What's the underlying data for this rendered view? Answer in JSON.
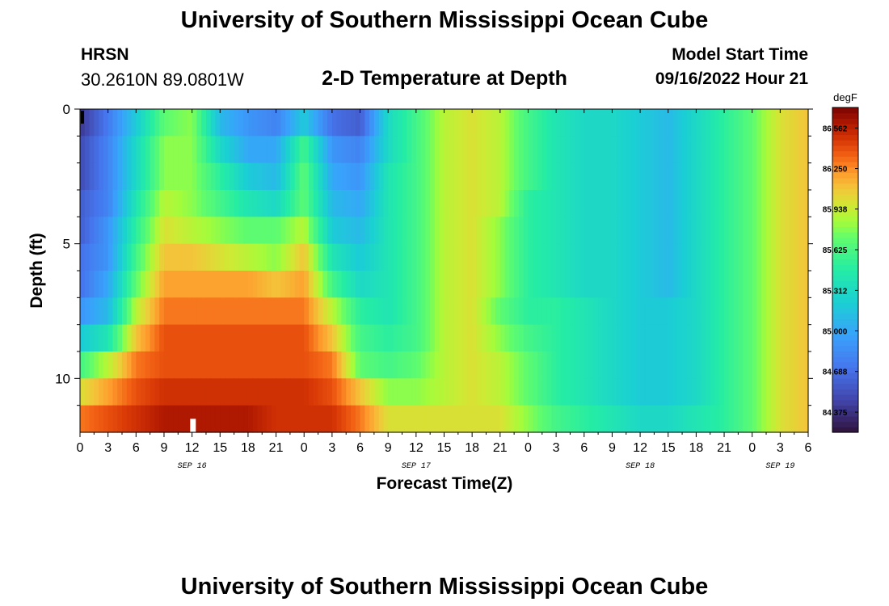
{
  "header": {
    "title": "University of Southern Mississippi Ocean Cube",
    "station": "HRSN",
    "coordinates": "30.2610N  89.0801W",
    "subtitle": "2-D Temperature at Depth",
    "model_start_label": "Model Start Time",
    "model_start_value": "09/16/2022 Hour 21"
  },
  "footer": {
    "title": "University of Southern Mississippi Ocean Cube"
  },
  "chart_data": {
    "type": "heatmap",
    "title": "2-D Temperature at Depth",
    "xlabel": "Forecast Time(Z)",
    "ylabel": "Depth (ft)",
    "x_unit": "hours since SEP 16 00Z",
    "xlim": [
      0,
      78
    ],
    "ylim": [
      12,
      0
    ],
    "x_ticks": [
      0,
      3,
      6,
      9,
      12,
      15,
      18,
      21,
      24,
      27,
      30,
      33,
      36,
      39,
      42,
      45,
      48,
      51,
      54,
      57,
      60,
      63,
      66,
      69,
      72,
      75,
      78
    ],
    "x_tick_labels": [
      "0",
      "3",
      "6",
      "9",
      "12",
      "15",
      "18",
      "21",
      "0",
      "3",
      "6",
      "9",
      "12",
      "15",
      "18",
      "21",
      "0",
      "3",
      "6",
      "9",
      "12",
      "15",
      "18",
      "21",
      "0",
      "3",
      "6"
    ],
    "date_labels": [
      {
        "hour": 12,
        "label": "SEP 16"
      },
      {
        "hour": 36,
        "label": "SEP 17"
      },
      {
        "hour": 60,
        "label": "SEP 18"
      },
      {
        "hour": 75,
        "label": "SEP 19"
      }
    ],
    "y_ticks": [
      0,
      5,
      10
    ],
    "y_tick_labels": [
      "0",
      "5",
      "10"
    ],
    "colorbar": {
      "unit": "degF",
      "min": 84.22,
      "max": 86.72,
      "tick_values": [
        86.562,
        86.25,
        85.938,
        85.625,
        85.312,
        85.0,
        84.688,
        84.375
      ],
      "tick_labels": [
        "86.562",
        "86.250",
        "85.938",
        "85.625",
        "85.312",
        "85.000",
        "84.688",
        "84.375"
      ]
    },
    "depth_levels_ft": [
      0.5,
      1.5,
      2.5,
      3.5,
      4.5,
      5.5,
      6.5,
      7.5,
      8.5,
      9.5,
      10.5,
      11.5
    ],
    "time_hours": [
      0,
      3,
      6,
      9,
      12,
      15,
      18,
      21,
      24,
      27,
      30,
      33,
      36,
      39,
      42,
      45,
      48,
      51,
      54,
      57,
      60,
      63,
      66,
      69,
      72,
      75,
      78
    ],
    "temperature_degF": [
      [
        84.4,
        84.75,
        85.2,
        85.7,
        85.8,
        85.1,
        84.9,
        84.8,
        85.2,
        84.7,
        84.6,
        85.3,
        85.6,
        85.9,
        86.0,
        85.9,
        85.6,
        85.4,
        85.3,
        85.3,
        85.2,
        85.1,
        85.3,
        85.5,
        85.7,
        86.0,
        86.1
      ],
      [
        84.5,
        84.8,
        85.3,
        85.8,
        85.8,
        85.3,
        85.0,
        85.0,
        85.6,
        84.9,
        84.8,
        85.3,
        85.6,
        85.9,
        86.0,
        85.9,
        85.6,
        85.4,
        85.3,
        85.3,
        85.2,
        85.1,
        85.3,
        85.5,
        85.7,
        86.0,
        86.1
      ],
      [
        84.5,
        84.8,
        85.3,
        85.8,
        85.8,
        85.5,
        85.2,
        85.1,
        85.7,
        85.0,
        84.9,
        85.4,
        85.6,
        85.9,
        86.0,
        85.9,
        85.6,
        85.4,
        85.3,
        85.3,
        85.2,
        85.1,
        85.3,
        85.5,
        85.7,
        86.0,
        86.1
      ],
      [
        84.6,
        84.8,
        85.4,
        85.9,
        85.8,
        85.6,
        85.4,
        85.3,
        85.7,
        85.1,
        85.0,
        85.4,
        85.6,
        85.9,
        86.0,
        85.9,
        85.5,
        85.4,
        85.3,
        85.3,
        85.2,
        85.1,
        85.3,
        85.5,
        85.7,
        86.0,
        86.1
      ],
      [
        84.6,
        84.9,
        85.5,
        86.0,
        85.9,
        85.8,
        85.7,
        85.7,
        85.9,
        85.2,
        85.1,
        85.4,
        85.6,
        85.9,
        86.0,
        85.8,
        85.5,
        85.4,
        85.3,
        85.3,
        85.2,
        85.1,
        85.3,
        85.5,
        85.7,
        86.0,
        86.1
      ],
      [
        84.7,
        84.9,
        85.6,
        86.1,
        86.1,
        86.0,
        85.9,
        85.8,
        86.1,
        85.4,
        85.2,
        85.4,
        85.6,
        85.9,
        86.0,
        85.8,
        85.5,
        85.4,
        85.3,
        85.3,
        85.2,
        85.1,
        85.3,
        85.5,
        85.7,
        86.0,
        86.1
      ],
      [
        84.7,
        85.0,
        85.7,
        86.2,
        86.2,
        86.2,
        86.2,
        86.1,
        86.2,
        85.6,
        85.3,
        85.4,
        85.6,
        85.9,
        86.0,
        85.8,
        85.5,
        85.4,
        85.3,
        85.3,
        85.2,
        85.1,
        85.3,
        85.5,
        85.7,
        86.0,
        86.1
      ],
      [
        84.9,
        85.1,
        85.9,
        86.3,
        86.3,
        86.3,
        86.3,
        86.3,
        86.3,
        85.9,
        85.5,
        85.4,
        85.6,
        85.9,
        86.0,
        85.7,
        85.5,
        85.5,
        85.4,
        85.3,
        85.2,
        85.2,
        85.3,
        85.5,
        85.7,
        86.0,
        86.1
      ],
      [
        85.2,
        85.4,
        86.1,
        86.4,
        86.4,
        86.4,
        86.4,
        86.4,
        86.4,
        86.1,
        85.6,
        85.5,
        85.6,
        85.9,
        86.0,
        85.8,
        85.6,
        85.5,
        85.4,
        85.3,
        85.2,
        85.2,
        85.3,
        85.5,
        85.7,
        86.0,
        86.1
      ],
      [
        85.6,
        85.9,
        86.3,
        86.4,
        86.4,
        86.4,
        86.4,
        86.4,
        86.4,
        86.3,
        85.7,
        85.6,
        85.7,
        85.9,
        86.0,
        85.9,
        85.7,
        85.5,
        85.4,
        85.3,
        85.2,
        85.2,
        85.3,
        85.5,
        85.7,
        86.0,
        86.1
      ],
      [
        86.0,
        86.2,
        86.4,
        86.5,
        86.5,
        86.5,
        86.5,
        86.5,
        86.5,
        86.4,
        86.1,
        85.8,
        85.8,
        85.9,
        86.0,
        85.9,
        85.7,
        85.5,
        85.4,
        85.3,
        85.2,
        85.2,
        85.3,
        85.5,
        85.7,
        86.0,
        86.1
      ],
      [
        86.3,
        86.4,
        86.5,
        86.6,
        86.6,
        86.6,
        86.6,
        86.5,
        86.5,
        86.5,
        86.3,
        86.0,
        86.0,
        86.0,
        86.0,
        86.0,
        85.8,
        85.6,
        85.5,
        85.4,
        85.3,
        85.3,
        85.4,
        85.5,
        85.7,
        86.0,
        86.1
      ]
    ]
  }
}
